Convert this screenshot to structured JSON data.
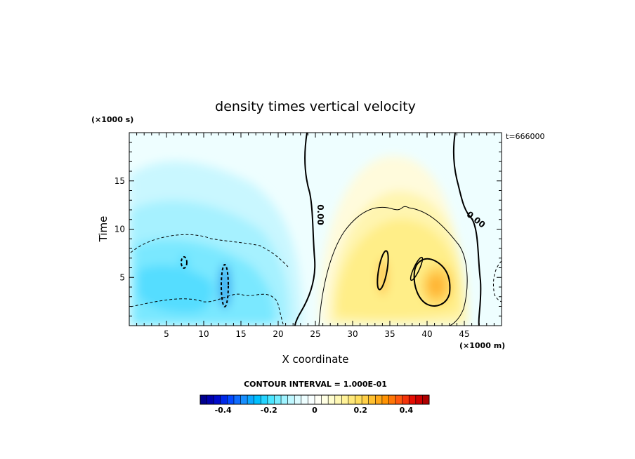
{
  "chart_data": {
    "type": "heatmap",
    "title": "density times vertical velocity",
    "xlabel": "X coordinate",
    "ylabel": "Time",
    "x_unit": "(×1000 m)",
    "y_unit": "(×1000 s)",
    "time_stamp": "t=666000",
    "xlim": [
      0,
      50
    ],
    "ylim": [
      0,
      20
    ],
    "x_ticks": [
      "5",
      "10",
      "15",
      "20",
      "25",
      "30",
      "35",
      "40",
      "45"
    ],
    "y_ticks": [
      "5",
      "10",
      "15"
    ],
    "contour_labels": [
      "0.00",
      "0.00"
    ],
    "contour_interval": "CONTOUR INTERVAL = 1.000E-01",
    "colorbar": {
      "min": -0.5,
      "max": 0.5,
      "ticks": [
        "-0.4",
        "-0.2",
        "0",
        "0.2",
        "0.4"
      ],
      "colors": [
        "#00007f",
        "#0000c0",
        "#0040ff",
        "#1a8cff",
        "#00c0ff",
        "#4fe8ff",
        "#aaf4ff",
        "#e6fdff",
        "#ffffff",
        "#ffffd8",
        "#fff4a0",
        "#ffe060",
        "#ffc030",
        "#ff9000",
        "#ff5010",
        "#e00000",
        "#a00000"
      ]
    }
  }
}
